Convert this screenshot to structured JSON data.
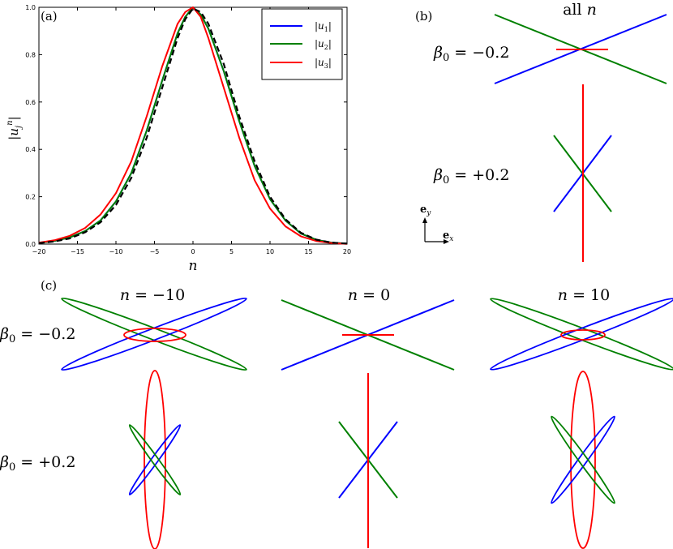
{
  "panels": {
    "a": "(a)",
    "b": "(b)",
    "c": "(c)"
  },
  "chart_data": [
    {
      "type": "line",
      "panel": "(a)",
      "xlabel": "n",
      "ylabel": "|u_j^n|",
      "xlim": [
        -20,
        20
      ],
      "ylim": [
        0,
        1.0
      ],
      "xticks": [
        "−20",
        "−15",
        "−10",
        "−5",
        "0",
        "5",
        "10",
        "15",
        "20"
      ],
      "yticks": [
        "0.0",
        "0.2",
        "0.4",
        "0.6",
        "0.8",
        "1.0"
      ],
      "legend_position": "top-right",
      "grid": false,
      "x": [
        -20,
        -18,
        -16,
        -14,
        -12,
        -10,
        -8,
        -6,
        -4,
        -2,
        -1,
        0,
        1,
        2,
        4,
        6,
        8,
        10,
        12,
        14,
        16,
        18,
        20
      ],
      "series": [
        {
          "name": "|u1|",
          "color": "#0000ff",
          "style": "solid",
          "values": [
            0.005,
            0.013,
            0.028,
            0.055,
            0.1,
            0.18,
            0.3,
            0.48,
            0.69,
            0.89,
            0.96,
            1.0,
            0.97,
            0.91,
            0.73,
            0.52,
            0.33,
            0.19,
            0.1,
            0.045,
            0.018,
            0.006,
            0.002
          ]
        },
        {
          "name": "|u2|",
          "color": "#008000",
          "style": "solid",
          "values": [
            0.005,
            0.013,
            0.028,
            0.055,
            0.1,
            0.18,
            0.3,
            0.48,
            0.69,
            0.89,
            0.96,
            1.0,
            0.97,
            0.91,
            0.73,
            0.52,
            0.33,
            0.19,
            0.1,
            0.045,
            0.018,
            0.006,
            0.002
          ]
        },
        {
          "name": "|u3|",
          "color": "#ff0000",
          "style": "solid",
          "values": [
            0.006,
            0.016,
            0.035,
            0.068,
            0.125,
            0.215,
            0.35,
            0.54,
            0.75,
            0.93,
            0.98,
            1.0,
            0.96,
            0.87,
            0.66,
            0.45,
            0.27,
            0.15,
            0.075,
            0.033,
            0.013,
            0.004,
            0.001
          ]
        },
        {
          "name": "",
          "color": "#000000",
          "style": "dashed",
          "values": [
            0.004,
            0.011,
            0.024,
            0.05,
            0.092,
            0.165,
            0.28,
            0.45,
            0.66,
            0.87,
            0.95,
            0.995,
            0.98,
            0.93,
            0.76,
            0.54,
            0.35,
            0.2,
            0.105,
            0.048,
            0.019,
            0.006,
            0.002
          ]
        }
      ]
    }
  ],
  "panel_b": {
    "title": "all n",
    "beta_minus": "β0 = −0.2",
    "beta_plus": "β0 = +0.2",
    "basis_y": "ey",
    "basis_x": "ex"
  },
  "panel_c": {
    "columns": [
      "n = −10",
      "n = 0",
      "n = 10"
    ],
    "beta_minus": "β0 = −0.2",
    "beta_plus": "β0 = +0.2"
  },
  "colors": {
    "u1": "#0000ff",
    "u2": "#008000",
    "u3": "#ff0000",
    "reference": "#000000"
  }
}
